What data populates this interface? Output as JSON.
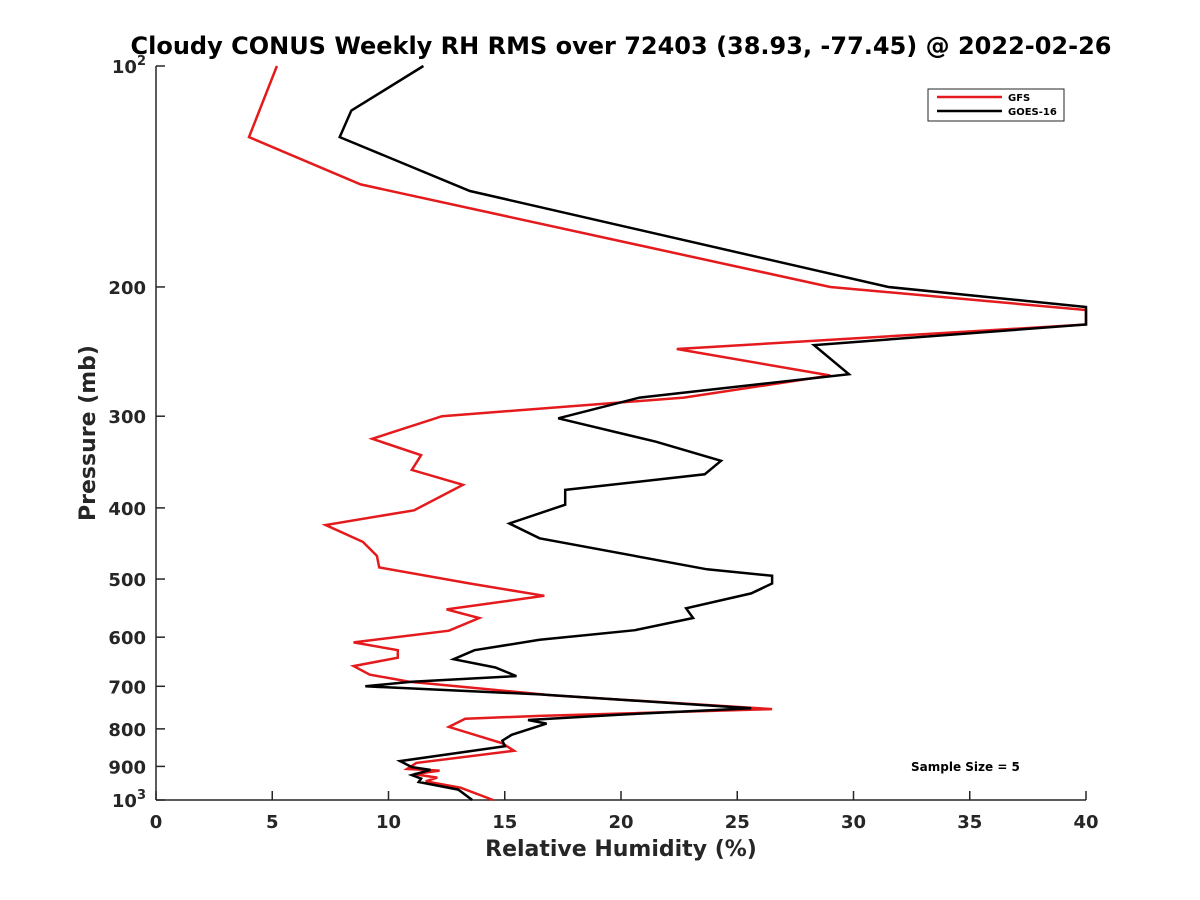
{
  "chart_data": {
    "type": "line",
    "title": "Cloudy CONUS Weekly RH RMS over 72403 (38.93, -77.45) @ 2022-02-26",
    "xlabel": "Relative Humidity (%)",
    "ylabel": "Pressure (mb)",
    "xlim": [
      0,
      40
    ],
    "ylim": [
      100,
      1000
    ],
    "y_scale": "log",
    "y_reversed": true,
    "grid": false,
    "legend_position": "top-right",
    "x_ticks": [
      {
        "value": 0,
        "label": "0"
      },
      {
        "value": 5,
        "label": "5"
      },
      {
        "value": 10,
        "label": "10"
      },
      {
        "value": 15,
        "label": "15"
      },
      {
        "value": 20,
        "label": "20"
      },
      {
        "value": 25,
        "label": "25"
      },
      {
        "value": 30,
        "label": "30"
      },
      {
        "value": 35,
        "label": "35"
      },
      {
        "value": 40,
        "label": "40"
      }
    ],
    "y_ticks": [
      {
        "value": 100,
        "label": "10",
        "sup": "2"
      },
      {
        "value": 200,
        "label": "200",
        "sup": ""
      },
      {
        "value": 300,
        "label": "300",
        "sup": ""
      },
      {
        "value": 400,
        "label": "400",
        "sup": ""
      },
      {
        "value": 500,
        "label": "500",
        "sup": ""
      },
      {
        "value": 600,
        "label": "600",
        "sup": ""
      },
      {
        "value": 700,
        "label": "700",
        "sup": ""
      },
      {
        "value": 800,
        "label": "800",
        "sup": ""
      },
      {
        "value": 900,
        "label": "900",
        "sup": ""
      },
      {
        "value": 1000,
        "label": "10",
        "sup": "3"
      }
    ],
    "series": [
      {
        "name": "GFS",
        "color": "#e41a1c",
        "points": [
          [
            5.2,
            100
          ],
          [
            4.0,
            125
          ],
          [
            8.8,
            145
          ],
          [
            29.0,
            200
          ],
          [
            40.0,
            215
          ],
          [
            40.0,
            225
          ],
          [
            22.4,
            243
          ],
          [
            29.0,
            264
          ],
          [
            22.7,
            283
          ],
          [
            12.3,
            300
          ],
          [
            9.3,
            322
          ],
          [
            11.4,
            339
          ],
          [
            11.0,
            355
          ],
          [
            13.2,
            372
          ],
          [
            11.1,
            403
          ],
          [
            7.3,
            422
          ],
          [
            8.9,
            445
          ],
          [
            9.5,
            465
          ],
          [
            9.6,
            482
          ],
          [
            13.5,
            507
          ],
          [
            16.7,
            527
          ],
          [
            12.5,
            550
          ],
          [
            13.9,
            565
          ],
          [
            12.6,
            588
          ],
          [
            8.5,
            610
          ],
          [
            10.4,
            625
          ],
          [
            10.4,
            640
          ],
          [
            8.5,
            657
          ],
          [
            9.2,
            675
          ],
          [
            10.9,
            690
          ],
          [
            17.0,
            720
          ],
          [
            26.5,
            752
          ],
          [
            16.5,
            768
          ],
          [
            13.3,
            775
          ],
          [
            12.6,
            795
          ],
          [
            14.9,
            837
          ],
          [
            15.4,
            857
          ],
          [
            11.2,
            890
          ],
          [
            10.8,
            907
          ],
          [
            12.2,
            912
          ],
          [
            11.1,
            922
          ],
          [
            12.1,
            932
          ],
          [
            11.6,
            943
          ],
          [
            13.1,
            962
          ],
          [
            14.5,
            1000
          ]
        ]
      },
      {
        "name": "GOES-16",
        "color": "#000000",
        "points": [
          [
            11.5,
            100
          ],
          [
            8.4,
            115
          ],
          [
            7.9,
            125
          ],
          [
            13.5,
            148
          ],
          [
            31.5,
            200
          ],
          [
            40.0,
            213
          ],
          [
            40.0,
            225
          ],
          [
            28.3,
            240
          ],
          [
            29.8,
            263
          ],
          [
            20.8,
            283
          ],
          [
            17.3,
            302
          ],
          [
            21.5,
            325
          ],
          [
            24.3,
            345
          ],
          [
            23.6,
            360
          ],
          [
            17.6,
            378
          ],
          [
            17.6,
            396
          ],
          [
            15.2,
            420
          ],
          [
            16.5,
            440
          ],
          [
            23.7,
            485
          ],
          [
            26.5,
            495
          ],
          [
            26.5,
            507
          ],
          [
            25.6,
            523
          ],
          [
            22.8,
            548
          ],
          [
            23.1,
            565
          ],
          [
            20.6,
            587
          ],
          [
            16.5,
            605
          ],
          [
            13.7,
            625
          ],
          [
            12.8,
            643
          ],
          [
            14.6,
            660
          ],
          [
            15.5,
            678
          ],
          [
            11.0,
            690
          ],
          [
            9.0,
            700
          ],
          [
            16.5,
            718
          ],
          [
            25.6,
            750
          ],
          [
            20.0,
            765
          ],
          [
            16.0,
            778
          ],
          [
            16.8,
            787
          ],
          [
            15.3,
            815
          ],
          [
            14.9,
            830
          ],
          [
            15.0,
            845
          ],
          [
            10.5,
            885
          ],
          [
            11.0,
            902
          ],
          [
            11.8,
            910
          ],
          [
            11.0,
            925
          ],
          [
            11.4,
            935
          ],
          [
            11.3,
            945
          ],
          [
            13.0,
            968
          ],
          [
            13.6,
            1000
          ]
        ]
      }
    ],
    "annotations": [
      {
        "text": "Sample Size = 5",
        "x": 33.8,
        "y": 900
      }
    ]
  }
}
